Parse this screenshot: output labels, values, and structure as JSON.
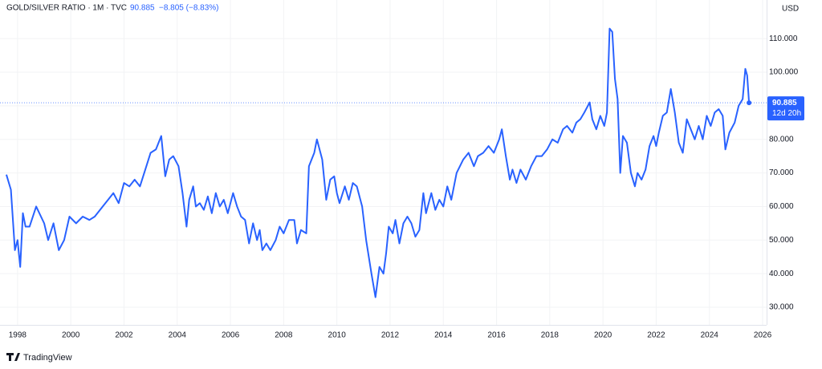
{
  "chart_data": {
    "type": "line",
    "title": "GOLD/SILVER RATIO · 1M · TVC",
    "change": "−8.805 (−8.83%)",
    "currency": "USD",
    "countdown": "12d 20h",
    "brand": "TradingView",
    "color": "#2962ff",
    "grid": true,
    "xlim": [
      1997.34,
      2026.15
    ],
    "ylim": [
      24.75,
      121.5
    ],
    "xticks": [
      1998,
      2000,
      2002,
      2004,
      2006,
      2008,
      2010,
      2012,
      2014,
      2016,
      2018,
      2020,
      2022,
      2024,
      2026
    ],
    "yticks": [
      {
        "value": 30,
        "label": "30.000"
      },
      {
        "value": 40,
        "label": "40.000"
      },
      {
        "value": 50,
        "label": "50.000"
      },
      {
        "value": 60,
        "label": "60.000"
      },
      {
        "value": 70,
        "label": "70.000"
      },
      {
        "value": 80,
        "label": "80.000"
      },
      {
        "value": 90,
        "label": "90.000"
      },
      {
        "value": 100,
        "label": "100.000"
      },
      {
        "value": 110,
        "label": "110.000"
      }
    ],
    "x": [
      1997.58,
      1997.75,
      1997.9,
      1998.0,
      1998.1,
      1998.2,
      1998.3,
      1998.45,
      1998.7,
      1999.0,
      1999.15,
      1999.35,
      1999.55,
      1999.75,
      1999.95,
      2000.2,
      2000.45,
      2000.7,
      2000.9,
      2001.1,
      2001.4,
      2001.6,
      2001.8,
      2002.0,
      2002.2,
      2002.4,
      2002.6,
      2002.8,
      2003.0,
      2003.2,
      2003.4,
      2003.55,
      2003.7,
      2003.85,
      2004.05,
      2004.2,
      2004.35,
      2004.45,
      2004.6,
      2004.7,
      2004.85,
      2005.0,
      2005.15,
      2005.3,
      2005.45,
      2005.6,
      2005.75,
      2005.9,
      2006.1,
      2006.25,
      2006.4,
      2006.55,
      2006.7,
      2006.85,
      2007.0,
      2007.1,
      2007.2,
      2007.35,
      2007.5,
      2007.7,
      2007.85,
      2008.0,
      2008.2,
      2008.4,
      2008.5,
      2008.65,
      2008.85,
      2008.95,
      2009.15,
      2009.25,
      2009.45,
      2009.6,
      2009.75,
      2009.9,
      2010.0,
      2010.1,
      2010.3,
      2010.45,
      2010.6,
      2010.75,
      2010.95,
      2011.1,
      2011.3,
      2011.45,
      2011.6,
      2011.75,
      2011.85,
      2011.95,
      2012.1,
      2012.2,
      2012.35,
      2012.5,
      2012.65,
      2012.8,
      2012.95,
      2013.1,
      2013.25,
      2013.35,
      2013.55,
      2013.7,
      2013.85,
      2014.0,
      2014.15,
      2014.3,
      2014.5,
      2014.75,
      2014.95,
      2015.15,
      2015.3,
      2015.5,
      2015.7,
      2015.9,
      2016.1,
      2016.2,
      2016.35,
      2016.5,
      2016.6,
      2016.75,
      2016.9,
      2017.1,
      2017.3,
      2017.5,
      2017.7,
      2017.9,
      2018.1,
      2018.3,
      2018.5,
      2018.65,
      2018.85,
      2019.0,
      2019.15,
      2019.3,
      2019.5,
      2019.6,
      2019.75,
      2019.9,
      2020.05,
      2020.15,
      2020.25,
      2020.35,
      2020.45,
      2020.55,
      2020.65,
      2020.75,
      2020.9,
      2021.05,
      2021.2,
      2021.3,
      2021.45,
      2021.6,
      2021.75,
      2021.9,
      2022.0,
      2022.1,
      2022.25,
      2022.4,
      2022.55,
      2022.7,
      2022.85,
      2023.0,
      2023.15,
      2023.3,
      2023.45,
      2023.6,
      2023.75,
      2023.9,
      2024.05,
      2024.2,
      2024.35,
      2024.5,
      2024.6,
      2024.75,
      2024.95,
      2025.1,
      2025.25,
      2025.35,
      2025.42,
      2025.49
    ],
    "values": [
      69.5,
      65,
      47,
      50,
      42,
      58,
      54,
      54,
      60,
      55,
      50,
      55,
      47,
      50,
      57,
      55,
      57,
      56,
      57,
      59,
      62,
      64,
      61,
      67,
      66,
      68,
      66,
      71,
      76,
      77,
      81,
      69,
      74,
      75,
      72,
      64,
      54,
      62,
      66,
      60,
      61,
      59,
      63,
      58,
      64,
      60,
      62,
      58,
      64,
      60,
      57,
      56,
      49,
      55,
      50,
      53,
      47,
      49,
      47,
      50,
      54,
      52,
      56,
      56,
      49,
      53,
      52,
      72,
      76,
      80,
      74,
      62,
      68,
      69,
      64,
      61,
      66,
      62,
      67,
      66,
      60,
      50,
      40,
      33,
      42,
      40,
      46,
      54,
      52,
      56,
      49,
      55,
      57,
      55,
      51,
      53,
      64,
      58,
      64,
      59,
      62,
      60,
      66,
      62,
      70,
      74,
      76,
      72,
      75,
      76,
      78,
      76,
      80,
      83,
      75,
      68,
      71,
      67,
      71,
      68,
      72,
      75,
      75,
      77,
      80,
      79,
      83,
      84,
      82,
      85,
      86,
      88,
      91,
      86,
      83,
      87,
      84,
      88,
      113,
      112,
      98,
      92,
      70,
      81,
      79,
      70,
      66,
      70,
      68,
      71,
      78,
      81,
      78,
      82,
      87,
      88,
      95,
      88,
      79,
      76,
      86,
      83,
      80,
      84,
      80,
      87,
      84,
      88,
      89,
      87,
      77,
      82,
      85,
      90,
      92,
      101,
      99,
      90.885
    ]
  }
}
